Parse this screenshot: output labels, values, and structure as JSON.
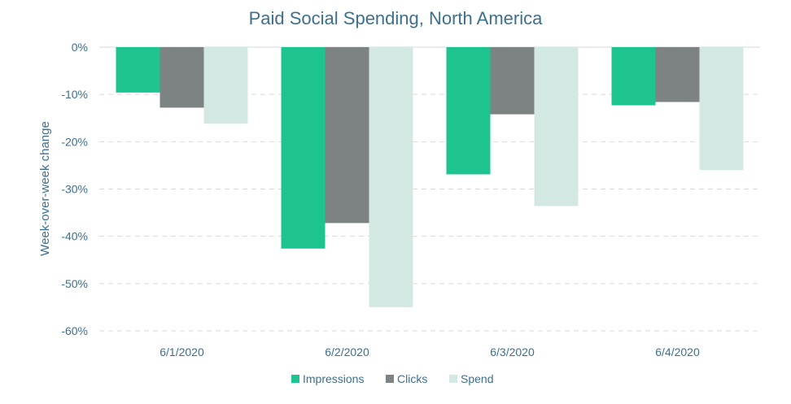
{
  "chart_data": {
    "type": "bar",
    "title": "Paid Social Spending, North America",
    "xlabel": "",
    "ylabel": "Week-over-week  change",
    "ylim": [
      -60,
      0
    ],
    "yticks": [
      0,
      -10,
      -20,
      -30,
      -40,
      -50,
      -60
    ],
    "ytick_labels": [
      "0%",
      "-10%",
      "-20%",
      "-30%",
      "-40%",
      "-50%",
      "-60%"
    ],
    "grid": true,
    "legend_position": "bottom-center",
    "categories": [
      "6/1/2020",
      "6/2/2020",
      "6/3/2020",
      "6/4/2020"
    ],
    "series": [
      {
        "name": "Impressions",
        "color": "#1dc48f",
        "values": [
          -9.6,
          -42.6,
          -26.9,
          -12.3
        ]
      },
      {
        "name": "Clicks",
        "color": "#7d8282",
        "values": [
          -12.8,
          -37.2,
          -14.2,
          -11.6
        ]
      },
      {
        "name": "Spend",
        "color": "#d4e8e3",
        "values": [
          -16.2,
          -55.0,
          -33.6,
          -26.0
        ]
      }
    ]
  }
}
